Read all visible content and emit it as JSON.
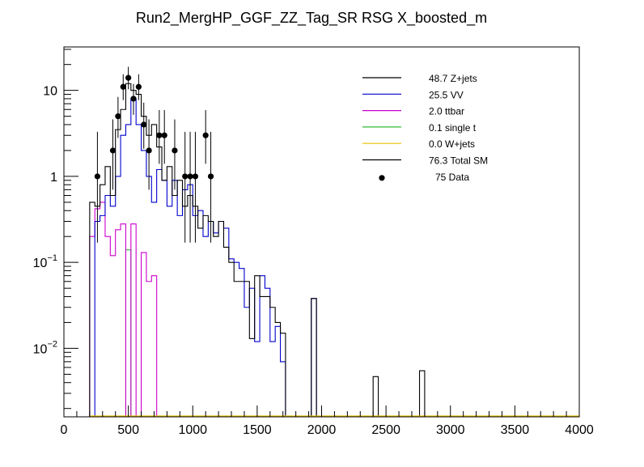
{
  "chart_data": {
    "type": "line",
    "subtype": "stacked-step-histogram",
    "title": "Run2_MergHP_GGF_ZZ_Tag_SR RSG  X_boosted_m",
    "xlabel": "",
    "ylabel": "",
    "xlim": [
      0,
      4000
    ],
    "ylim": [
      0.0016,
      32
    ],
    "yscale": "log",
    "grid": false,
    "legend_position": "top-right",
    "x_ticks": [
      "0",
      "500",
      "1000",
      "1500",
      "2000",
      "2500",
      "3000",
      "3500",
      "4000"
    ],
    "y_ticks": [
      {
        "value": 10,
        "base": "10",
        "exp": ""
      },
      {
        "value": 1,
        "base": "1",
        "exp": ""
      },
      {
        "value": 0.1,
        "base": "10",
        "exp": "−1"
      },
      {
        "value": 0.01,
        "base": "10",
        "exp": "−2"
      }
    ],
    "legend": [
      {
        "label": "48.7 Z+jets",
        "color": "#000000",
        "kind": "line"
      },
      {
        "label": "25.5 VV",
        "color": "#0000cc",
        "kind": "line"
      },
      {
        "label": "2.0 ttbar",
        "color": "#cc00cc",
        "kind": "line"
      },
      {
        "label": "0.1 single t",
        "color": "#33bb33",
        "kind": "line"
      },
      {
        "label": "0.0 W+jets",
        "color": "#e8c000",
        "kind": "line"
      },
      {
        "label": "76.3 Total SM",
        "color": "#000000",
        "kind": "line"
      },
      {
        "label": "75 Data",
        "color": "#000000",
        "kind": "marker"
      }
    ],
    "bin_width": 40,
    "series": [
      {
        "name": "Total SM",
        "color": "#000000",
        "bins": [
          [
            200,
            0.5
          ],
          [
            240,
            0.45
          ],
          [
            280,
            0.8
          ],
          [
            320,
            1.3
          ],
          [
            360,
            0.6
          ],
          [
            400,
            3.5
          ],
          [
            440,
            6
          ],
          [
            480,
            12
          ],
          [
            520,
            10
          ],
          [
            560,
            9
          ],
          [
            600,
            5
          ],
          [
            640,
            3
          ],
          [
            680,
            4
          ],
          [
            720,
            2.2
          ],
          [
            760,
            0.9
          ],
          [
            800,
            1.3
          ],
          [
            840,
            0.6
          ],
          [
            880,
            0.9
          ],
          [
            920,
            0.45
          ],
          [
            960,
            0.6
          ],
          [
            1000,
            0.45
          ],
          [
            1040,
            0.25
          ],
          [
            1080,
            0.35
          ],
          [
            1120,
            0.3
          ],
          [
            1160,
            0.2
          ],
          [
            1200,
            0.3
          ],
          [
            1240,
            0.15
          ],
          [
            1280,
            0.1
          ],
          [
            1320,
            0.06
          ],
          [
            1360,
            0.06
          ],
          [
            1400,
            0.06
          ],
          [
            1440,
            0.013
          ],
          [
            1480,
            0.07
          ],
          [
            1520,
            0.04
          ],
          [
            1560,
            0.04
          ],
          [
            1600,
            0.03
          ],
          [
            1640,
            0.02
          ],
          [
            1680,
            0.015
          ],
          [
            1920,
            0.038
          ],
          [
            2400,
            0.0047
          ],
          [
            2760,
            0.0055
          ]
        ]
      },
      {
        "name": "VV",
        "color": "#0000cc",
        "bins": [
          [
            240,
            0.3
          ],
          [
            280,
            0.35
          ],
          [
            320,
            0.6
          ],
          [
            360,
            0.45
          ],
          [
            400,
            1.0
          ],
          [
            440,
            3.0
          ],
          [
            480,
            4.0
          ],
          [
            520,
            8.0
          ],
          [
            560,
            4.0
          ],
          [
            600,
            2.0
          ],
          [
            640,
            1.0
          ],
          [
            680,
            0.5
          ],
          [
            720,
            1.2
          ],
          [
            760,
            0.9
          ],
          [
            800,
            0.45
          ],
          [
            840,
            0.9
          ],
          [
            880,
            0.35
          ],
          [
            920,
            0.7
          ],
          [
            960,
            0.8
          ],
          [
            1000,
            0.35
          ],
          [
            1040,
            0.4
          ],
          [
            1080,
            0.2
          ],
          [
            1120,
            0.3
          ],
          [
            1160,
            0.22
          ],
          [
            1200,
            0.3
          ],
          [
            1240,
            0.25
          ],
          [
            1280,
            0.11
          ],
          [
            1320,
            0.1
          ],
          [
            1360,
            0.085
          ],
          [
            1400,
            0.03
          ],
          [
            1440,
            0.05
          ],
          [
            1480,
            0.012
          ],
          [
            1520,
            0.07
          ],
          [
            1560,
            0.05
          ],
          [
            1600,
            0.012
          ],
          [
            1640,
            0.018
          ],
          [
            1680,
            0.007
          ],
          [
            1920,
            0.038
          ]
        ]
      },
      {
        "name": "ttbar",
        "color": "#cc00cc",
        "bins": [
          [
            200,
            0.2
          ],
          [
            240,
            0.42
          ],
          [
            280,
            0.5
          ],
          [
            320,
            0.2
          ],
          [
            360,
            0.12
          ],
          [
            400,
            0.24
          ],
          [
            440,
            0.28
          ],
          [
            520,
            0.28
          ],
          [
            600,
            0.13
          ],
          [
            640,
            0.06
          ],
          [
            680,
            0.07
          ]
        ]
      },
      {
        "name": "single t",
        "color": "#33bb33",
        "bins": [
          [
            480,
            0.14
          ]
        ]
      }
    ],
    "data_points": [
      {
        "x": 260,
        "y": 1,
        "err_up": 2.3,
        "err_down": 0.83
      },
      {
        "x": 380,
        "y": 2,
        "err_up": 2.6,
        "err_down": 1.3
      },
      {
        "x": 420,
        "y": 5,
        "err_up": 3.4,
        "err_down": 2.2
      },
      {
        "x": 460,
        "y": 11,
        "err_up": 4.4,
        "err_down": 3.3
      },
      {
        "x": 500,
        "y": 14,
        "err_up": 4.8,
        "err_down": 3.7
      },
      {
        "x": 540,
        "y": 8,
        "err_up": 3.9,
        "err_down": 2.8
      },
      {
        "x": 580,
        "y": 11,
        "err_up": 4.4,
        "err_down": 3.3
      },
      {
        "x": 620,
        "y": 4,
        "err_up": 3.2,
        "err_down": 1.9
      },
      {
        "x": 660,
        "y": 2,
        "err_up": 2.6,
        "err_down": 1.3
      },
      {
        "x": 740,
        "y": 3,
        "err_up": 2.9,
        "err_down": 1.6
      },
      {
        "x": 780,
        "y": 3,
        "err_up": 2.9,
        "err_down": 1.6
      },
      {
        "x": 860,
        "y": 2,
        "err_up": 2.6,
        "err_down": 1.3
      },
      {
        "x": 940,
        "y": 1,
        "err_up": 2.3,
        "err_down": 0.83
      },
      {
        "x": 980,
        "y": 1,
        "err_up": 2.3,
        "err_down": 0.83
      },
      {
        "x": 1020,
        "y": 1,
        "err_up": 2.3,
        "err_down": 0.83
      },
      {
        "x": 1100,
        "y": 3,
        "err_up": 2.9,
        "err_down": 1.6
      },
      {
        "x": 1140,
        "y": 1,
        "err_up": 2.3,
        "err_down": 0.83
      }
    ]
  }
}
